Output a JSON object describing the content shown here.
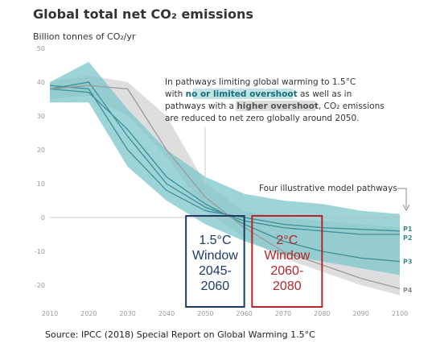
{
  "chart_data": {
    "type": "area",
    "title": "Global total net CO₂ emissions",
    "ylabel": "Billion tonnes of CO₂/yr",
    "xlim": [
      2010,
      2100
    ],
    "ylim": [
      -25,
      50
    ],
    "x_ticks": [
      2010,
      2020,
      2030,
      2040,
      2050,
      2060,
      2070,
      2080,
      2090,
      2100
    ],
    "y_ticks": [
      50,
      40,
      30,
      20,
      10,
      0,
      -10,
      -20
    ],
    "grid": false,
    "bands": [
      {
        "name": "higher overshoot",
        "color": "#d6d6d6",
        "x": [
          2010,
          2020,
          2030,
          2040,
          2050,
          2060,
          2070,
          2080,
          2090,
          2100
        ],
        "upper": [
          40,
          42,
          40,
          30,
          10,
          2,
          0,
          -1,
          -2,
          -3
        ],
        "lower": [
          35,
          36,
          30,
          18,
          2,
          -6,
          -12,
          -16,
          -20,
          -23
        ]
      },
      {
        "name": "no or limited overshoot",
        "color": "#7cc6cb",
        "x": [
          2010,
          2020,
          2030,
          2040,
          2050,
          2060,
          2070,
          2080,
          2090,
          2100
        ],
        "upper": [
          40,
          46,
          32,
          20,
          12,
          7,
          5,
          4,
          2,
          1
        ],
        "lower": [
          34,
          34,
          15,
          5,
          -2,
          -7,
          -11,
          -13,
          -15,
          -17
        ]
      }
    ],
    "series": [
      {
        "name": "P1",
        "x": [
          2010,
          2020,
          2030,
          2040,
          2050,
          2060,
          2070,
          2080,
          2090,
          2100
        ],
        "values": [
          39,
          38,
          20,
          8,
          2,
          0,
          -2,
          -3,
          -3.5,
          -4
        ]
      },
      {
        "name": "P2",
        "x": [
          2010,
          2020,
          2030,
          2040,
          2050,
          2060,
          2070,
          2080,
          2090,
          2100
        ],
        "values": [
          38,
          40,
          24,
          10,
          3,
          -1,
          -3,
          -4,
          -5,
          -5
        ]
      },
      {
        "name": "P3",
        "x": [
          2010,
          2020,
          2030,
          2040,
          2050,
          2060,
          2070,
          2080,
          2090,
          2100
        ],
        "values": [
          38,
          37,
          26,
          12,
          4,
          -2,
          -7,
          -10,
          -12,
          -13
        ]
      },
      {
        "name": "P4",
        "x": [
          2010,
          2020,
          2030,
          2040,
          2050,
          2060,
          2070,
          2080,
          2090,
          2100
        ],
        "values": [
          38,
          39,
          38,
          20,
          6,
          -3,
          -10,
          -14,
          -18,
          -21
        ]
      }
    ],
    "annotation": {
      "line1": "In pathways limiting global warming to 1.5°C",
      "line2_pre": "with ",
      "line2_hl": "no or limited overshoot",
      "line2_post": " as well as in",
      "line3_pre": "pathways with a ",
      "line3_hl": "higher overshoot",
      "line3_post": ", CO₂ emissions",
      "line4": "are reduced to net zero globally around 2050."
    },
    "pathways_label": "Four illustrative model pathways",
    "windows": [
      {
        "lines": [
          "1.5°C",
          "Window",
          "2045-",
          "2060"
        ],
        "x_start": 2045,
        "x_end": 2060,
        "color": "#1f3b63"
      },
      {
        "lines": [
          "2°C",
          "Window",
          "2060-",
          "2080"
        ],
        "x_start": 2062,
        "x_end": 2080,
        "color": "#b3272a"
      }
    ]
  },
  "source": "Source: IPCC (2018) Special Report on Global Warming 1.5°C"
}
